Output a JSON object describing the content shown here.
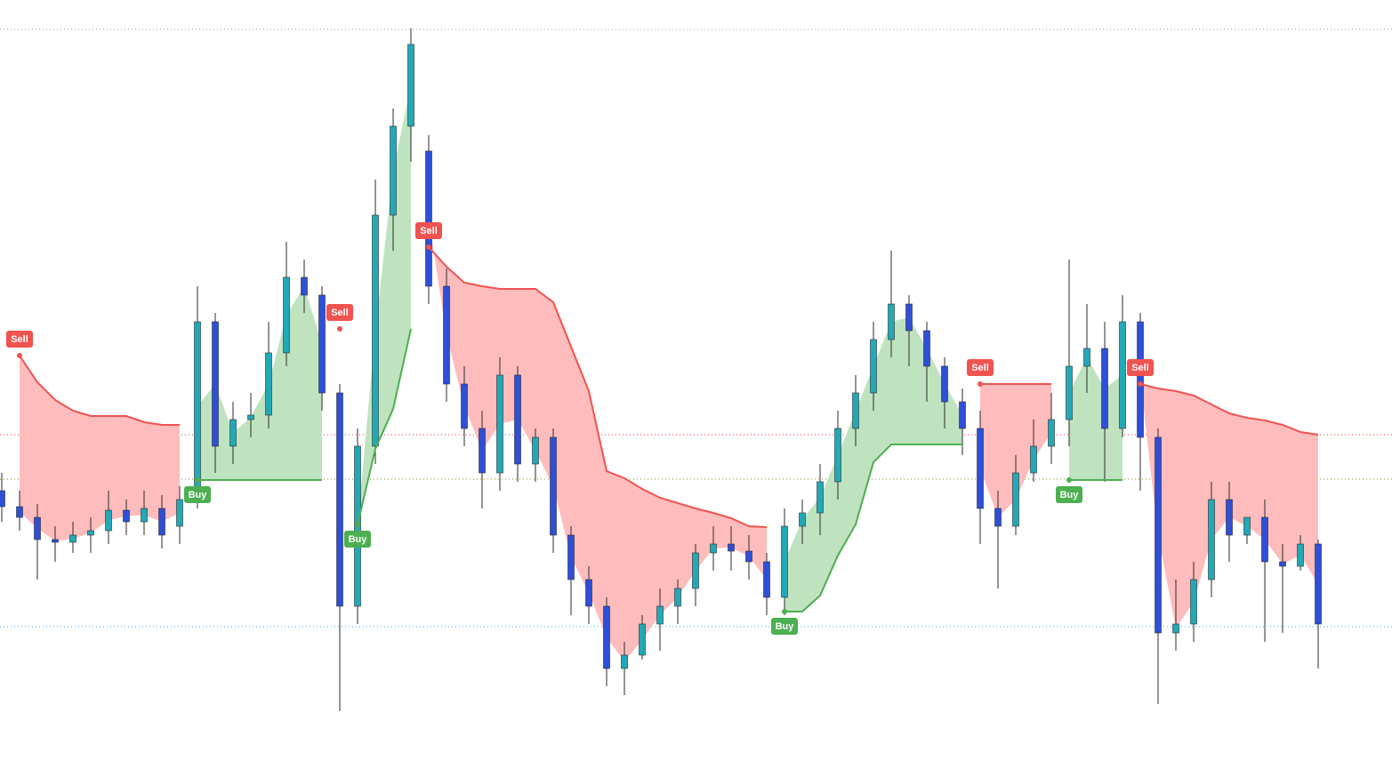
{
  "chart_data": {
    "type": "candlestick",
    "ylim": [
      0,
      882
    ],
    "open": [
      330,
      312,
      300,
      275,
      272,
      280,
      285,
      308,
      295,
      310,
      290,
      330,
      520,
      380,
      410,
      415,
      485,
      570,
      550,
      440,
      200,
      380,
      640,
      740,
      712,
      560,
      450,
      400,
      350,
      460,
      360,
      390,
      280,
      230,
      200,
      130,
      145,
      180,
      200,
      220,
      260,
      270,
      262,
      250,
      210,
      290,
      305,
      340,
      400,
      440,
      500,
      540,
      510,
      470,
      430,
      400,
      310,
      290,
      350,
      380,
      410,
      470,
      490,
      400,
      520,
      390,
      170,
      180,
      230,
      320,
      280,
      300,
      250,
      245,
      270
    ],
    "high": [
      350,
      330,
      315,
      290,
      295,
      300,
      330,
      320,
      330,
      325,
      335,
      560,
      530,
      430,
      440,
      520,
      610,
      590,
      560,
      450,
      400,
      680,
      760,
      850,
      730,
      580,
      470,
      420,
      480,
      470,
      400,
      400,
      290,
      245,
      210,
      160,
      190,
      220,
      230,
      270,
      290,
      290,
      280,
      260,
      310,
      320,
      360,
      420,
      460,
      520,
      600,
      550,
      520,
      480,
      445,
      420,
      330,
      370,
      410,
      440,
      590,
      540,
      520,
      550,
      530,
      400,
      230,
      250,
      340,
      340,
      300,
      320,
      270,
      280,
      275
    ],
    "low": [
      295,
      285,
      230,
      250,
      260,
      260,
      270,
      280,
      280,
      265,
      270,
      310,
      350,
      360,
      390,
      400,
      470,
      530,
      420,
      82,
      180,
      360,
      600,
      700,
      540,
      430,
      380,
      310,
      330,
      340,
      340,
      260,
      190,
      180,
      110,
      100,
      140,
      150,
      180,
      200,
      240,
      240,
      230,
      190,
      190,
      270,
      280,
      320,
      380,
      420,
      480,
      470,
      430,
      400,
      370,
      270,
      220,
      280,
      340,
      360,
      380,
      440,
      340,
      390,
      330,
      90,
      150,
      160,
      210,
      250,
      270,
      160,
      170,
      240,
      130
    ],
    "close": [
      312,
      300,
      275,
      272,
      280,
      285,
      308,
      295,
      310,
      280,
      320,
      520,
      380,
      410,
      415,
      485,
      570,
      550,
      440,
      200,
      380,
      640,
      740,
      832,
      560,
      450,
      400,
      350,
      460,
      360,
      390,
      280,
      230,
      200,
      130,
      145,
      180,
      200,
      220,
      260,
      270,
      262,
      250,
      210,
      290,
      305,
      340,
      400,
      440,
      500,
      540,
      510,
      470,
      430,
      400,
      310,
      290,
      350,
      380,
      410,
      470,
      490,
      400,
      520,
      390,
      170,
      180,
      230,
      320,
      280,
      300,
      250,
      245,
      270,
      180
    ],
    "up_color": "#22a9b8",
    "down_color": "#2e4fd8",
    "wick_color": "#2b2b2b",
    "trend": [
      {
        "color": "#4caf50",
        "fill": "#bfe3bf",
        "values": [
          272,
          null,
          null,
          null,
          null,
          null,
          null,
          null,
          null,
          null,
          null,
          342,
          342,
          342,
          342,
          342,
          342,
          342,
          342,
          null,
          292,
          377,
          422,
          512,
          null,
          null,
          null,
          null,
          null,
          null,
          null,
          null,
          null,
          null,
          null,
          null,
          null,
          null,
          null,
          null,
          null,
          null,
          null,
          null,
          194,
          194,
          212,
          257,
          292,
          362,
          382,
          382,
          382,
          382,
          382,
          null,
          null,
          null,
          null,
          null,
          342,
          342,
          342,
          342,
          null,
          null,
          null,
          null,
          null,
          null,
          null,
          null,
          null,
          null,
          null
        ]
      },
      {
        "color": "#ef5350",
        "fill": "#ffbcbc",
        "values": [
          null,
          482,
          452,
          432,
          420,
          414,
          414,
          414,
          407,
          404,
          404,
          null,
          null,
          null,
          null,
          null,
          null,
          null,
          null,
          512,
          null,
          null,
          null,
          null,
          604,
          582,
          564,
          560,
          557,
          557,
          557,
          542,
          492,
          442,
          352,
          344,
          332,
          322,
          316,
          310,
          305,
          299,
          290,
          289,
          null,
          null,
          null,
          null,
          null,
          null,
          null,
          null,
          null,
          null,
          null,
          450,
          450,
          450,
          450,
          450,
          null,
          null,
          null,
          null,
          450,
          445,
          442,
          437,
          427,
          417,
          412,
          409,
          404,
          396,
          393
        ]
      }
    ],
    "signals": [
      {
        "index": 1,
        "label": "Sell"
      },
      {
        "index": 11,
        "label": "Buy"
      },
      {
        "index": 19,
        "label": "Sell"
      },
      {
        "index": 20,
        "label": "Buy"
      },
      {
        "index": 24,
        "label": "Sell"
      },
      {
        "index": 44,
        "label": "Buy"
      },
      {
        "index": 55,
        "label": "Sell"
      },
      {
        "index": 60,
        "label": "Buy"
      },
      {
        "index": 64,
        "label": "Sell"
      }
    ],
    "hlines": [
      {
        "value": 849,
        "color": "#9e9e9e"
      },
      {
        "value": 393,
        "color": "#e53935"
      },
      {
        "value": 343,
        "color": "#8a8a2a"
      },
      {
        "value": 177,
        "color": "#42a5f5"
      }
    ]
  }
}
